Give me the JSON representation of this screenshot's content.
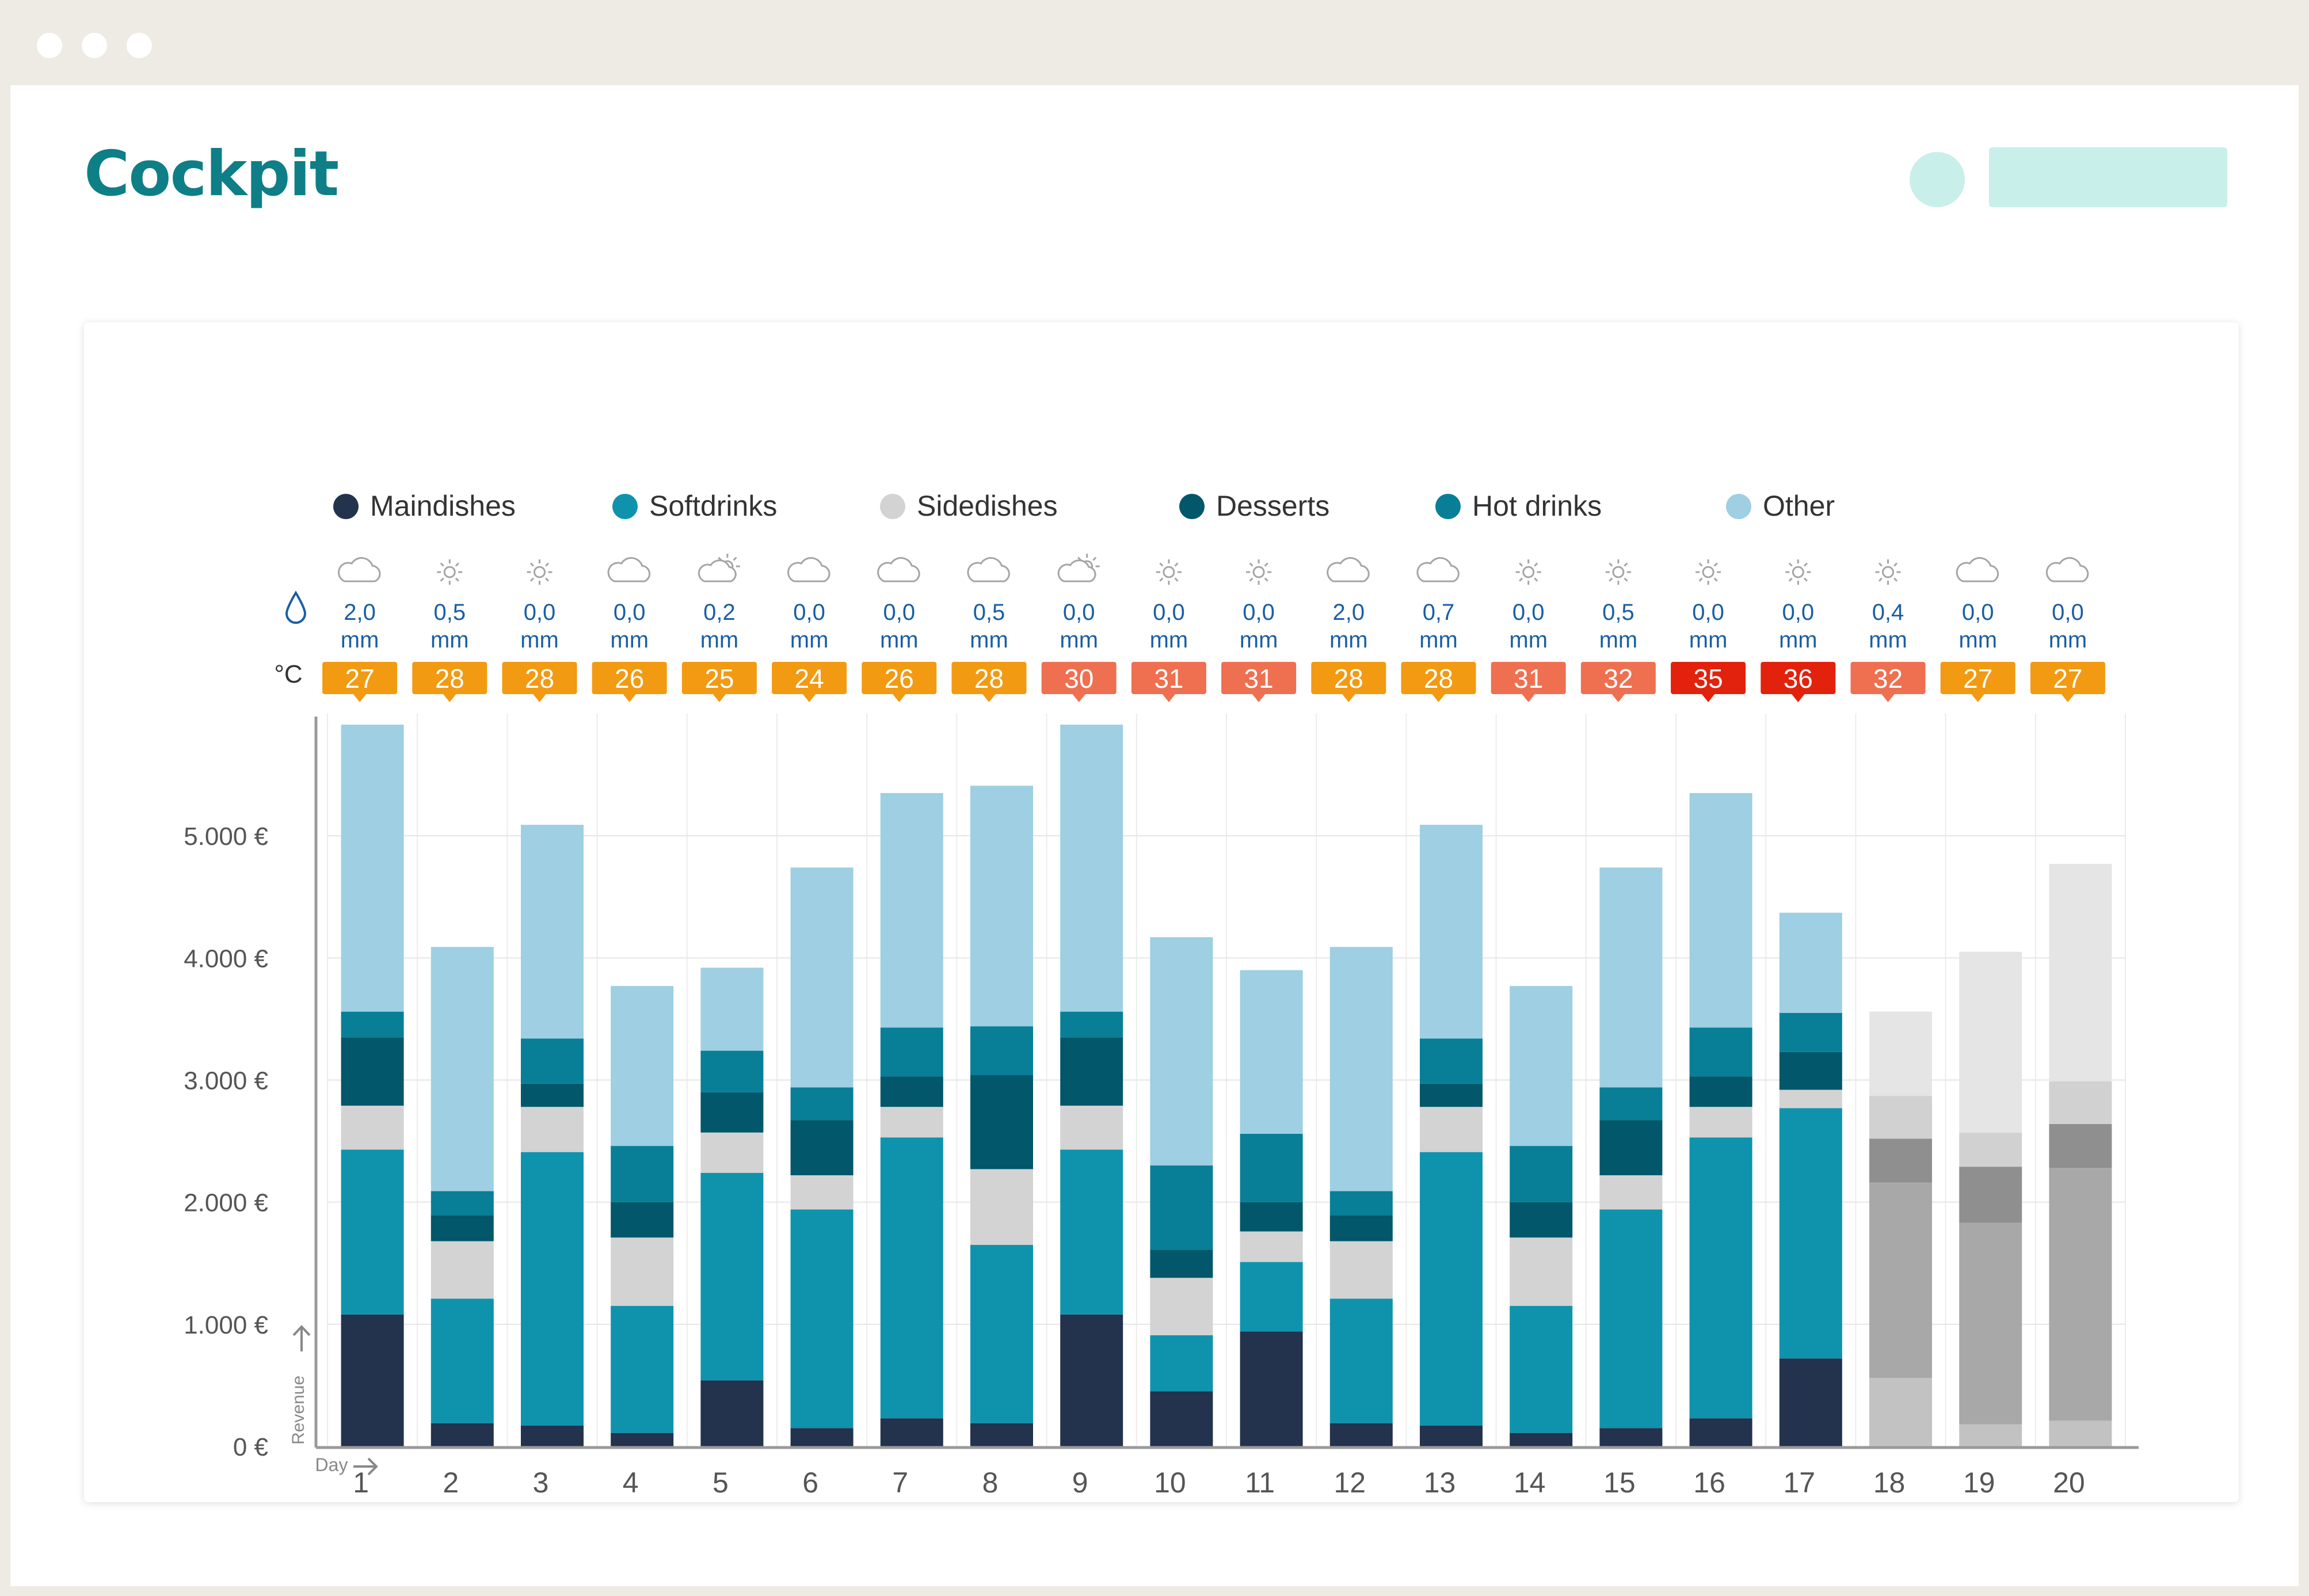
{
  "app": {
    "title": "Cockpit"
  },
  "colors": {
    "Maindishes": "#23324d",
    "Softdrinks": "#0f93ad",
    "Sidedishes": "#d3d3d3",
    "Desserts": "#02576a",
    "Hot drinks": "#087f96",
    "Other": "#9ecfe2",
    "temp_orange": "#f29a12",
    "temp_salmon": "#ee7050",
    "temp_red": "#e2220c",
    "rain": "#1a5ea4"
  },
  "chart_data": {
    "type": "bar",
    "stacked": true,
    "legend_position": "top",
    "xlabel": "Day",
    "ylabel": "Revenue",
    "temp_label": "°C",
    "rain_unit": "mm",
    "ylim": [
      0,
      6000
    ],
    "ytick_labels": [
      "0 €",
      "1.000 €",
      "2.000 €",
      "3.000 €",
      "4.000 €",
      "5.000 €"
    ],
    "categories": [
      "1",
      "2",
      "3",
      "4",
      "5",
      "6",
      "7",
      "8",
      "9",
      "10",
      "11",
      "12",
      "13",
      "14",
      "15",
      "16",
      "17",
      "18",
      "19",
      "20"
    ],
    "series": [
      {
        "name": "Maindishes",
        "values": [
          1080,
          190,
          170,
          110,
          540,
          150,
          230,
          190,
          1080,
          450,
          940,
          190,
          170,
          110,
          150,
          230,
          720,
          560,
          180,
          210
        ]
      },
      {
        "name": "Softdrinks",
        "values": [
          1350,
          1020,
          2240,
          1040,
          1700,
          1790,
          2300,
          1460,
          1350,
          460,
          570,
          1020,
          2240,
          1040,
          1790,
          2300,
          2050,
          1600,
          1650,
          2070
        ]
      },
      {
        "name": "Sidedishes",
        "values": [
          360,
          470,
          370,
          560,
          330,
          280,
          250,
          620,
          360,
          470,
          250,
          470,
          370,
          560,
          280,
          250,
          150,
          360,
          460,
          360
        ]
      },
      {
        "name": "Desserts",
        "values": [
          560,
          210,
          190,
          290,
          330,
          450,
          250,
          770,
          560,
          230,
          240,
          210,
          190,
          290,
          450,
          250,
          310,
          350,
          280,
          350
        ]
      },
      {
        "name": "Hot drinks",
        "values": [
          210,
          200,
          370,
          460,
          340,
          270,
          400,
          400,
          210,
          690,
          560,
          200,
          370,
          460,
          270,
          400,
          320,
          0,
          0,
          0
        ]
      },
      {
        "name": "Other",
        "values": [
          2350,
          2000,
          1750,
          1310,
          680,
          1800,
          1920,
          1970,
          2350,
          1870,
          1340,
          2000,
          1750,
          1310,
          1800,
          1920,
          820,
          690,
          1480,
          1780
        ]
      }
    ],
    "forecast_days": [
      "18",
      "19",
      "20"
    ],
    "forecast_colors": {
      "Maindishes": "#c2c2c2",
      "Softdrinks": "#a8a8a8",
      "Sidedishes": "#8f8f8f",
      "Desserts": "#d1d1d1",
      "Hot drinks": "#7d7d7d",
      "Other": "#e5e5e5"
    },
    "weather": {
      "icons": [
        "cloud-icon",
        "sun-icon",
        "sun-icon",
        "cloud-icon",
        "sun-cloud-icon",
        "cloud-icon",
        "cloud-icon",
        "cloud-icon",
        "sun-cloud-icon",
        "sun-icon",
        "sun-icon",
        "cloud-icon",
        "cloud-icon",
        "sun-icon",
        "sun-icon",
        "sun-icon",
        "sun-icon",
        "sun-icon",
        "cloud-icon",
        "cloud-icon"
      ],
      "rain": [
        "2,0",
        "0,5",
        "0,0",
        "0,0",
        "0,2",
        "0,0",
        "0,0",
        "0,5",
        "0,0",
        "0,0",
        "0,0",
        "2,0",
        "0,7",
        "0,0",
        "0,5",
        "0,0",
        "0,0",
        "0,4",
        "0,0",
        "0,0"
      ],
      "temps": [
        "27",
        "28",
        "28",
        "26",
        "25",
        "24",
        "26",
        "28",
        "30",
        "31",
        "31",
        "28",
        "28",
        "31",
        "32",
        "35",
        "36",
        "32",
        "27",
        "27"
      ]
    }
  }
}
